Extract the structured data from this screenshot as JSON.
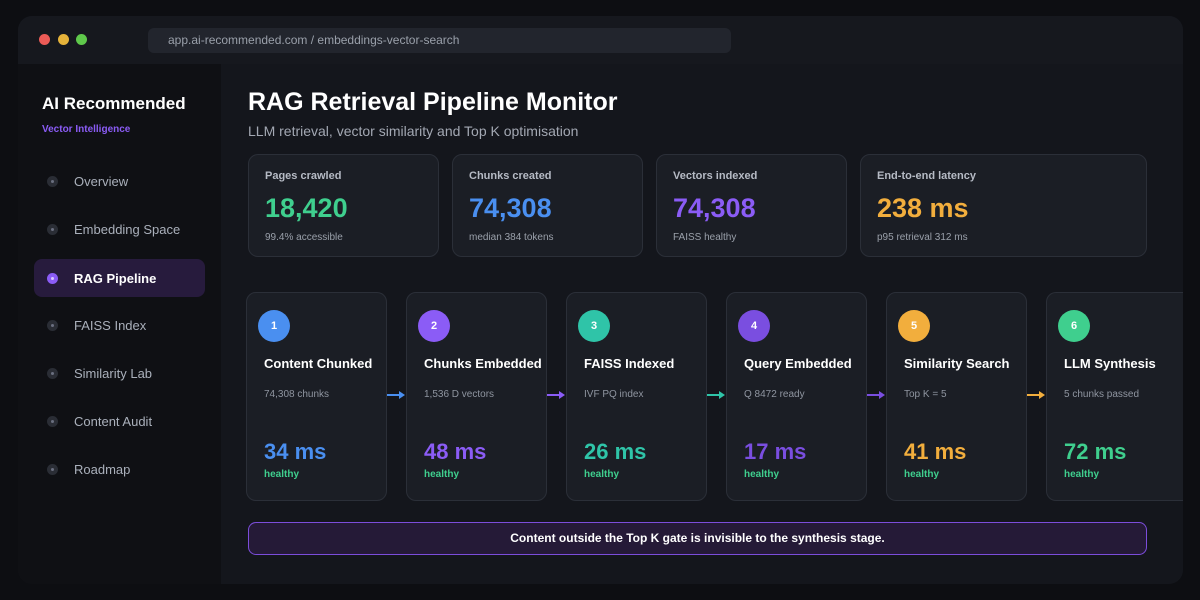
{
  "browser": {
    "url": "app.ai-recommended.com / embeddings-vector-search"
  },
  "sidebar": {
    "brand": "AI Recommended",
    "brand_subtitle": "Vector Intelligence",
    "items": [
      {
        "label": "Overview",
        "active": false
      },
      {
        "label": "Embedding Space",
        "active": false
      },
      {
        "label": "RAG Pipeline",
        "active": true
      },
      {
        "label": "FAISS Index",
        "active": false
      },
      {
        "label": "Similarity Lab",
        "active": false
      },
      {
        "label": "Content Audit",
        "active": false
      },
      {
        "label": "Roadmap",
        "active": false
      }
    ]
  },
  "header": {
    "title": "RAG Retrieval Pipeline Monitor",
    "subtitle": "LLM retrieval, vector similarity and Top K optimisation"
  },
  "stats": [
    {
      "label": "Pages crawled",
      "value": "18,420",
      "note": "99.4% accessible",
      "color": "#3fcf8e"
    },
    {
      "label": "Chunks created",
      "value": "74,308",
      "note": "median 384 tokens",
      "color": "#4a8ff0"
    },
    {
      "label": "Vectors indexed",
      "value": "74,308",
      "note": "FAISS healthy",
      "color": "#8b5cf6"
    },
    {
      "label": "End-to-end latency",
      "value": "238 ms",
      "note": "p95 retrieval 312 ms",
      "color": "#f2ae3d"
    }
  ],
  "pipeline": {
    "stages": [
      {
        "number": "1",
        "title": "Content Chunked",
        "detail": "74,308 chunks",
        "value": "34 ms",
        "status": "healthy",
        "color": "#4a8ff0"
      },
      {
        "number": "2",
        "title": "Chunks Embedded",
        "detail": "1,536 D vectors",
        "value": "48 ms",
        "status": "healthy",
        "color": "#8b5cf6"
      },
      {
        "number": "3",
        "title": "FAISS Indexed",
        "detail": "IVF PQ index",
        "value": "26 ms",
        "status": "healthy",
        "color": "#2fc4a8"
      },
      {
        "number": "4",
        "title": "Query Embedded",
        "detail": "Q 8472 ready",
        "value": "17 ms",
        "status": "healthy",
        "color": "#7a4ee0"
      },
      {
        "number": "5",
        "title": "Similarity Search",
        "detail": "Top K = 5",
        "value": "41 ms",
        "status": "healthy",
        "color": "#f2ae3d"
      },
      {
        "number": "6",
        "title": "LLM Synthesis",
        "detail": "5 chunks passed",
        "value": "72 ms",
        "status": "healthy",
        "color": "#3fcf8e"
      }
    ],
    "arrow_colors": [
      "#4a8ff0",
      "#8b5cf6",
      "#2fc4a8",
      "#7a4ee0",
      "#f2ae3d"
    ]
  },
  "callout": {
    "text": "Content outside the Top K gate is invisible to the synthesis stage."
  }
}
